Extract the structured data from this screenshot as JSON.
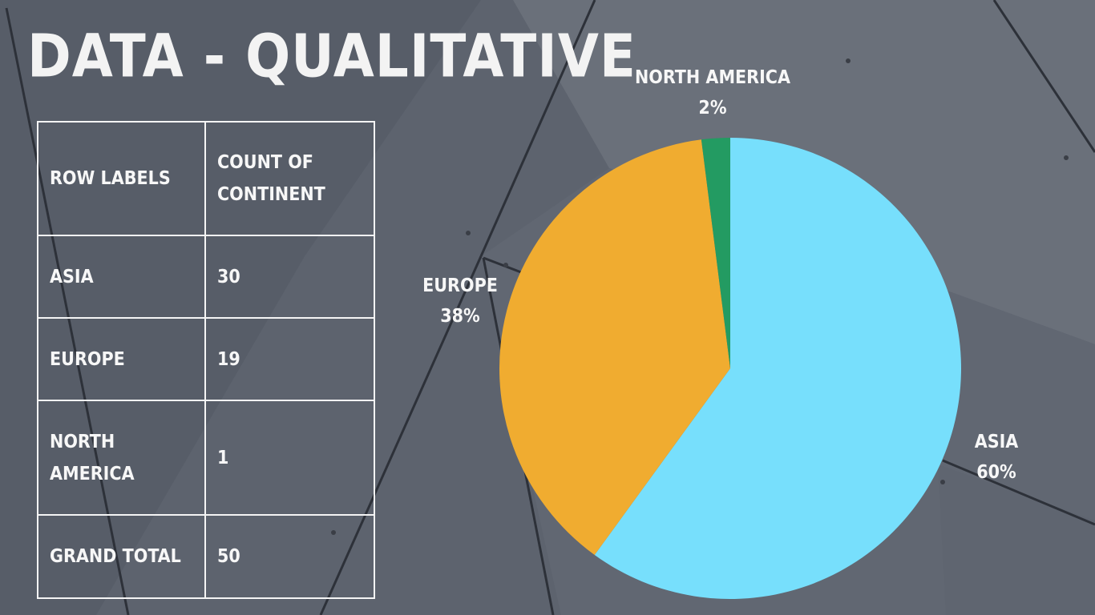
{
  "slide": {
    "title": "DATA - QUALITATIVE"
  },
  "table": {
    "headers": [
      "ROW LABELS",
      "COUNT OF CONTINENT"
    ],
    "rows": [
      {
        "label": "ASIA",
        "value": "30"
      },
      {
        "label": "EUROPE",
        "value": "19"
      },
      {
        "label": "NORTH AMERICA",
        "value": "1"
      },
      {
        "label": "GRAND TOTAL",
        "value": "50"
      }
    ]
  },
  "chart_data": {
    "type": "pie",
    "categories": [
      "ASIA",
      "EUROPE",
      "NORTH AMERICA"
    ],
    "values": [
      30,
      19,
      1
    ],
    "percent_labels": [
      "60%",
      "38%",
      "2%"
    ],
    "colors": [
      "#77dffc",
      "#f0ac30",
      "#239b62"
    ],
    "title": "",
    "legend": "none"
  }
}
